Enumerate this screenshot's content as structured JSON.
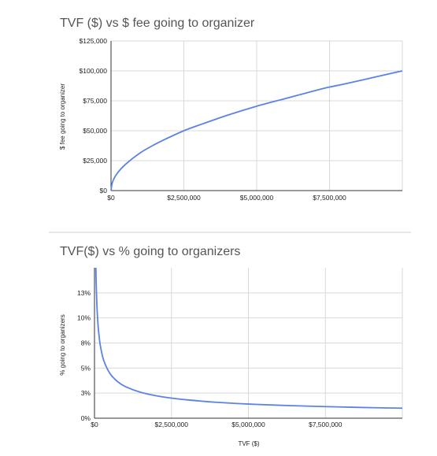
{
  "chart_data": [
    {
      "type": "line",
      "title": "TVF ($) vs $ fee going to organizer",
      "xlabel": "",
      "ylabel": "$ fee going to organizer",
      "xlim": [
        0,
        10000000
      ],
      "ylim": [
        0,
        125000
      ],
      "x_ticks": [
        0,
        2500000,
        5000000,
        7500000
      ],
      "x_tick_labels": [
        "$0",
        "$2,500,000",
        "$5,000,000",
        "$7,500,000"
      ],
      "y_ticks": [
        0,
        25000,
        50000,
        75000,
        100000,
        125000
      ],
      "y_tick_labels": [
        "$0",
        "$25,000",
        "$50,000",
        "$75,000",
        "$100,000",
        "$125,000"
      ],
      "grid": true,
      "legend": "none",
      "color": "#5b82e6",
      "series": [
        {
          "x": [
            0,
            50000,
            200000,
            500000,
            1000000,
            1500000,
            2000000,
            2500000,
            3000000,
            4000000,
            5000000,
            6000000,
            7000000,
            7500000,
            8000000,
            9000000,
            10000000
          ],
          "values": [
            0,
            7000,
            14000,
            22000,
            31500,
            38500,
            44500,
            50000,
            54500,
            63000,
            70500,
            77000,
            83500,
            86500,
            89000,
            94500,
            100000
          ]
        }
      ]
    },
    {
      "type": "line",
      "title": "TVF($) vs % going to organizers",
      "xlabel": "TVF ($)",
      "ylabel": "% going to organizers",
      "xlim": [
        0,
        10000000
      ],
      "ylim": [
        0,
        15
      ],
      "x_ticks": [
        0,
        2500000,
        5000000,
        7500000
      ],
      "x_tick_labels": [
        "$0",
        "$2,500,000",
        "$5,000,000",
        "$7,500,000"
      ],
      "y_ticks": [
        0,
        2.5,
        5,
        7.5,
        10,
        12.5
      ],
      "y_tick_labels": [
        "0%",
        "3%",
        "5%",
        "8%",
        "10%",
        "13%"
      ],
      "grid": true,
      "legend": "none",
      "color": "#5b82e6",
      "series": [
        {
          "x": [
            44444,
            55000,
            70000,
            90000,
            120000,
            160000,
            200000,
            300000,
            500000,
            750000,
            1000000,
            1500000,
            2000000,
            2500000,
            3000000,
            4000000,
            5000000,
            6000000,
            7000000,
            8000000,
            9000000,
            10000000
          ],
          "values": [
            15,
            13.5,
            12,
            10.5,
            9.1,
            7.9,
            7.07,
            5.77,
            4.47,
            3.65,
            3.16,
            2.58,
            2.24,
            2.0,
            1.83,
            1.58,
            1.41,
            1.29,
            1.2,
            1.12,
            1.05,
            1.0
          ]
        }
      ]
    }
  ]
}
